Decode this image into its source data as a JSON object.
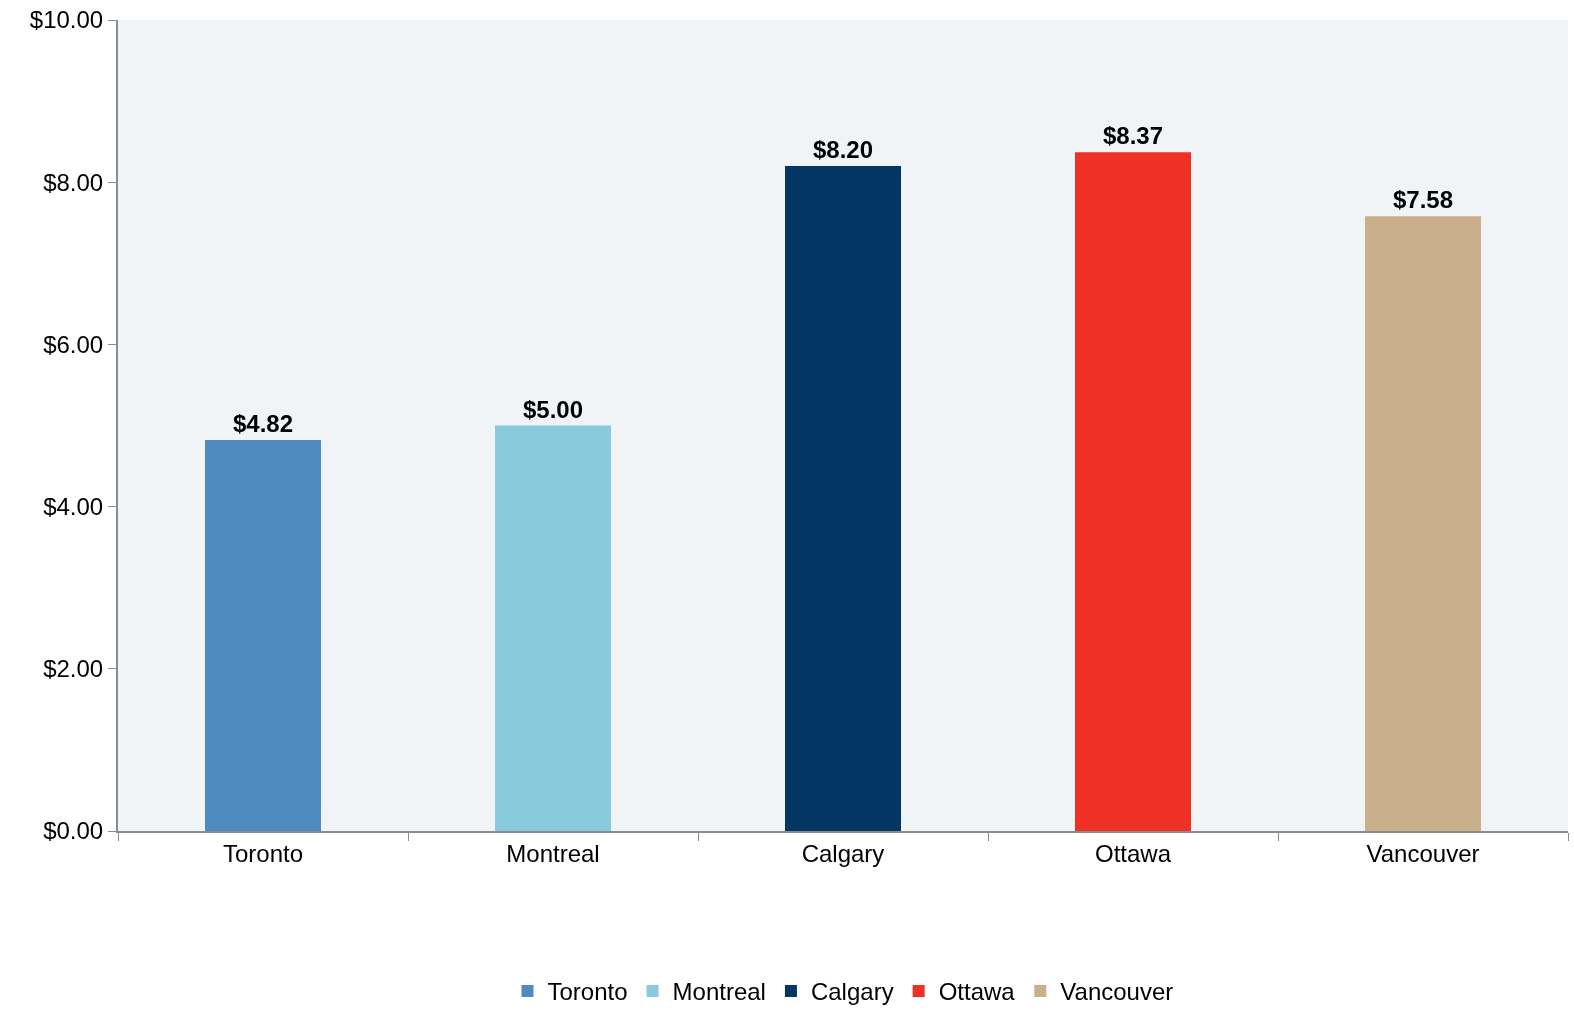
{
  "chart_data": {
    "type": "bar",
    "categories": [
      "Toronto",
      "Montreal",
      "Calgary",
      "Ottawa",
      "Vancouver"
    ],
    "series": [
      {
        "name": "Toronto",
        "color": "#4f8bbf",
        "values": [
          4.82,
          null,
          null,
          null,
          null
        ],
        "value_labels": [
          "$4.82",
          null,
          null,
          null,
          null
        ]
      },
      {
        "name": "Montreal",
        "color": "#89cadc",
        "values": [
          null,
          5.0,
          null,
          null,
          null
        ],
        "value_labels": [
          null,
          "$5.00",
          null,
          null,
          null
        ]
      },
      {
        "name": "Calgary",
        "color": "#033663",
        "values": [
          null,
          null,
          8.2,
          null,
          null
        ],
        "value_labels": [
          null,
          null,
          "$8.20",
          null,
          null
        ]
      },
      {
        "name": "Ottawa",
        "color": "#ee3124",
        "values": [
          null,
          null,
          null,
          8.37,
          null
        ],
        "value_labels": [
          null,
          null,
          null,
          "$8.37",
          null
        ]
      },
      {
        "name": "Vancouver",
        "color": "#c9b08b",
        "values": [
          null,
          null,
          null,
          null,
          7.58
        ],
        "value_labels": [
          null,
          null,
          null,
          null,
          "$7.58"
        ]
      }
    ],
    "ylim": [
      0,
      10
    ],
    "yticks": [
      {
        "value": 0,
        "label": "$0.00"
      },
      {
        "value": 2,
        "label": "$2.00"
      },
      {
        "value": 4,
        "label": "$4.00"
      },
      {
        "value": 6,
        "label": "$6.00"
      },
      {
        "value": 8,
        "label": "$8.00"
      },
      {
        "value": 10,
        "label": "$10.00"
      }
    ],
    "grid": false,
    "legend": "bottom"
  }
}
